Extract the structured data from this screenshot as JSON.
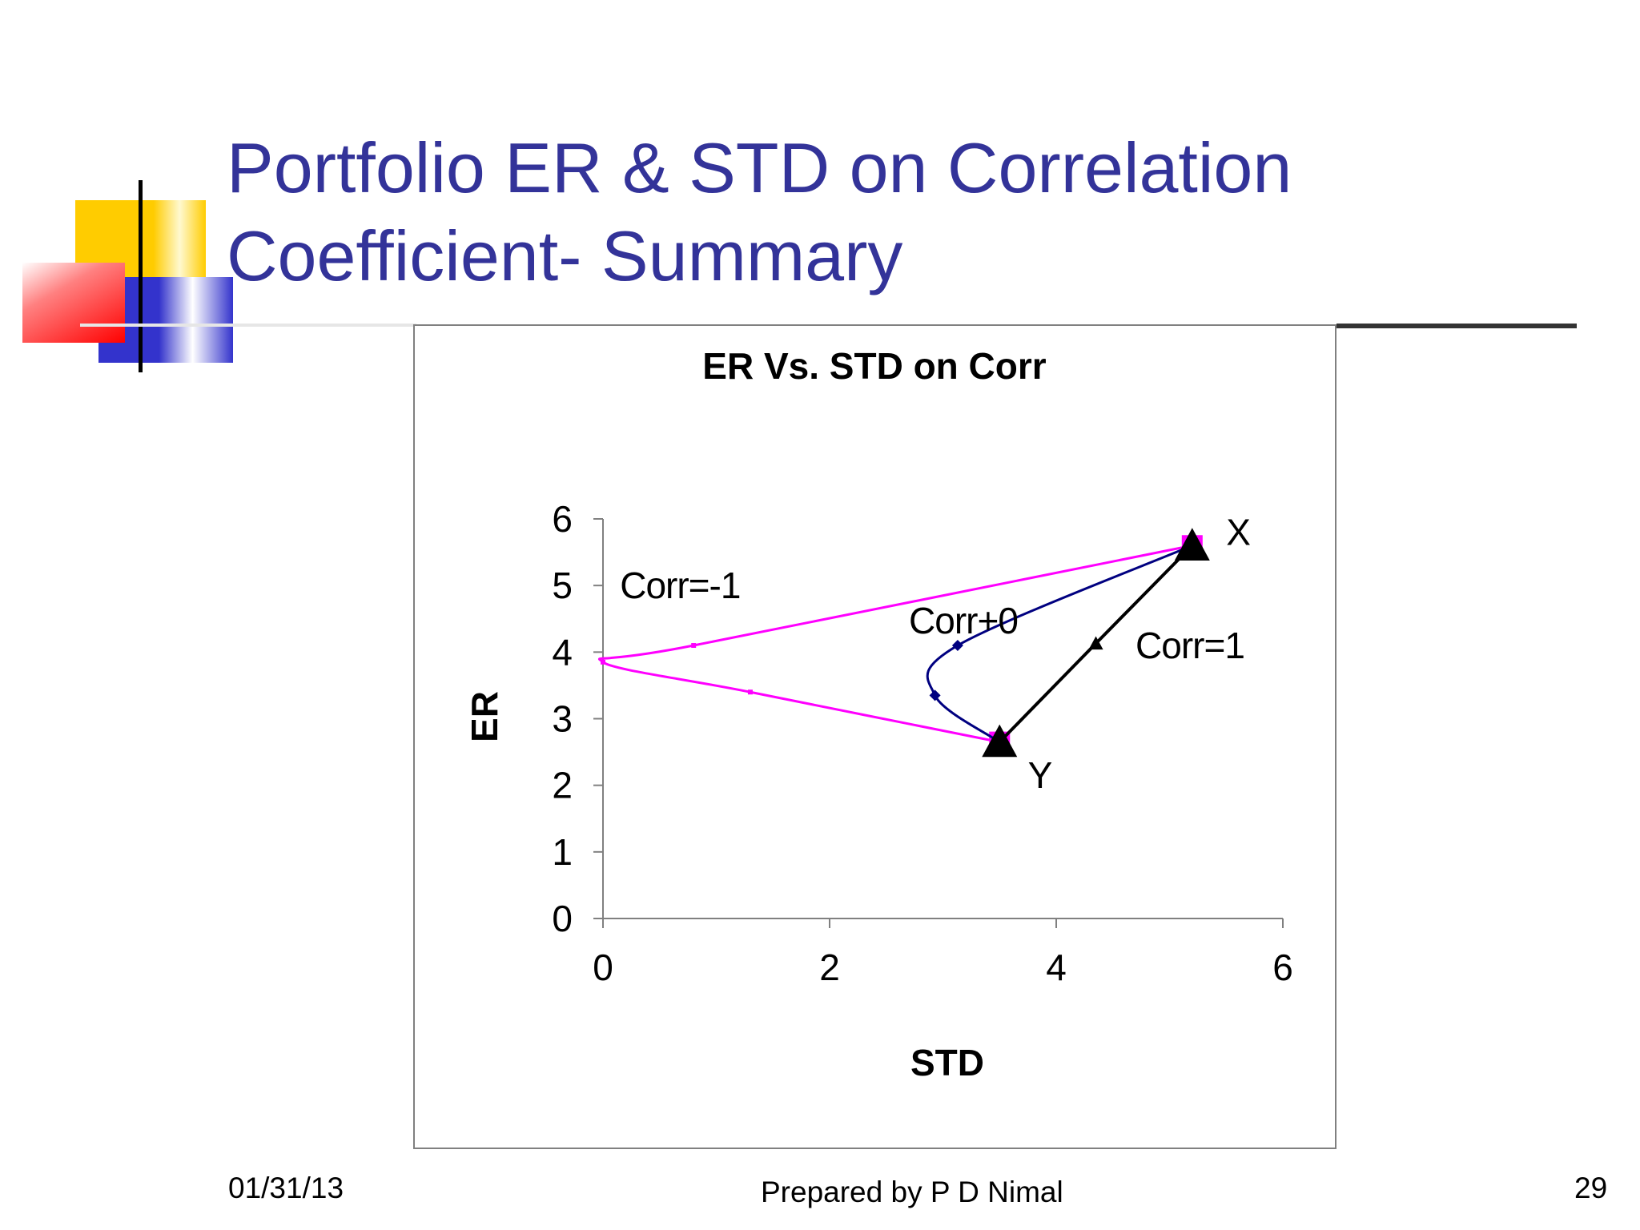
{
  "slide": {
    "title_line1": "Portfolio ER & STD on Correlation",
    "title_line2": "Coefficient- Summary",
    "footer_date": "01/31/13",
    "footer_author": "Prepared by P D Nimal",
    "footer_page": "29"
  },
  "colors": {
    "title": "#333399",
    "corr_neg1": "#ff00ff",
    "corr_0": "#000080",
    "corr_1": "#000000",
    "deco_yellow": "#ffcc00",
    "deco_red": "#ff0000",
    "deco_blue": "#3333cc"
  },
  "chart_data": {
    "type": "line",
    "title": "ER Vs. STD on Corr",
    "xlabel": "STD",
    "ylabel": "ER",
    "xlim": [
      0,
      6
    ],
    "ylim": [
      0,
      6
    ],
    "x_ticks": [
      "0",
      "2",
      "4",
      "6"
    ],
    "y_ticks": [
      "0",
      "1",
      "2",
      "3",
      "4",
      "5",
      "6"
    ],
    "grid": false,
    "legend": "none",
    "series": [
      {
        "name": "Corr=-1",
        "color": "#ff00ff",
        "marker": "square",
        "points": [
          [
            3.5,
            2.65
          ],
          [
            1.3,
            3.4
          ],
          [
            0,
            3.85
          ],
          [
            0.8,
            4.1
          ],
          [
            5.2,
            5.6
          ]
        ]
      },
      {
        "name": "Corr+0",
        "color": "#000080",
        "marker": "diamond",
        "points": [
          [
            3.5,
            2.65
          ],
          [
            2.93,
            3.35
          ],
          [
            3.13,
            4.1
          ],
          [
            5.2,
            5.6
          ]
        ]
      },
      {
        "name": "Corr=1",
        "color": "#000000",
        "marker": "triangle",
        "points": [
          [
            3.5,
            2.65
          ],
          [
            4.35,
            4.13
          ],
          [
            5.2,
            5.6
          ]
        ]
      }
    ],
    "annotations": [
      {
        "text": "Corr=-1",
        "x": 0.15,
        "y": 5.0
      },
      {
        "text": "Corr+0",
        "x": 2.7,
        "y": 4.47
      },
      {
        "text": "Corr=1",
        "x": 4.7,
        "y": 4.1
      },
      {
        "text": "X",
        "x": 5.5,
        "y": 5.8
      },
      {
        "text": "Y",
        "x": 3.75,
        "y": 2.15
      }
    ]
  }
}
